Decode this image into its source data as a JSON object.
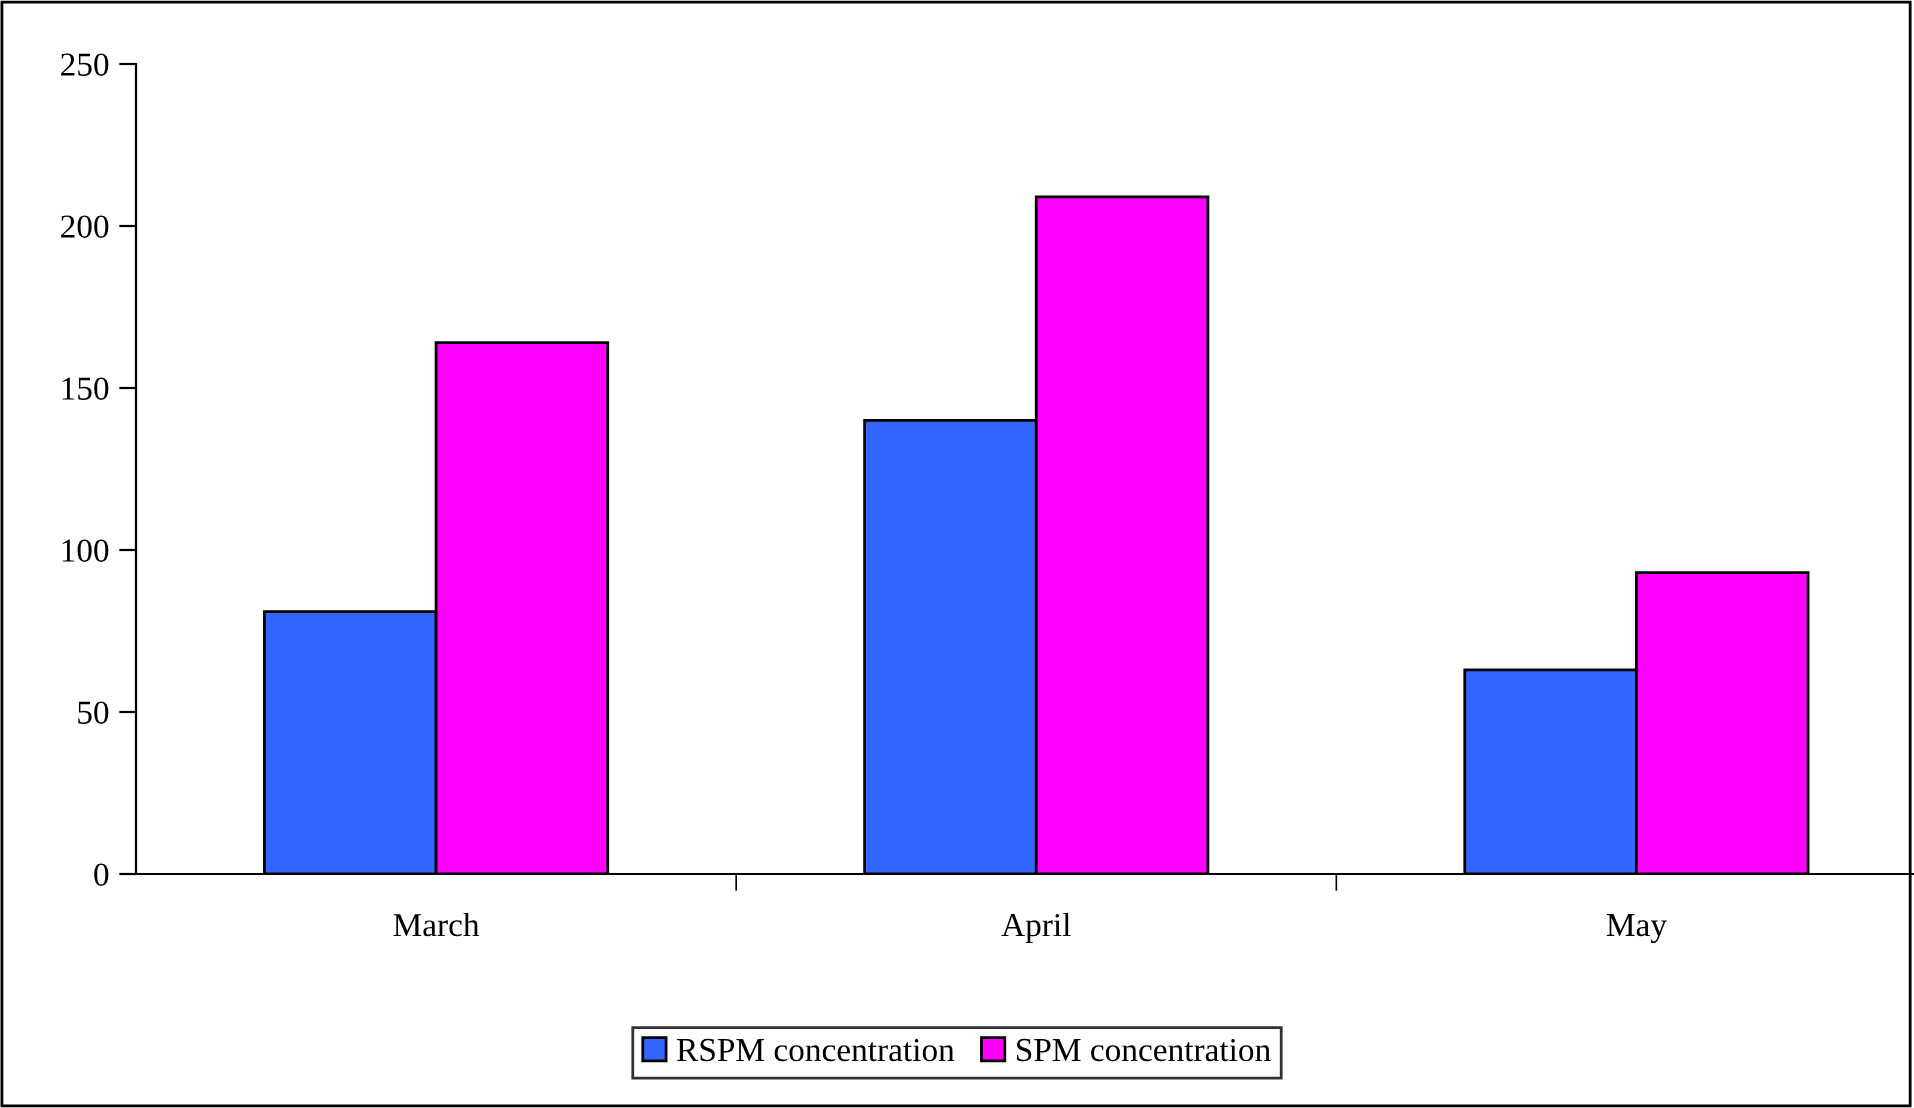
{
  "chart_data": {
    "type": "bar",
    "categories": [
      "March",
      "April",
      "May"
    ],
    "series": [
      {
        "name": "RSPM concentration",
        "color": "#3366ff",
        "values": [
          81,
          140,
          63
        ]
      },
      {
        "name": "SPM concentration",
        "color": "#ff00ff",
        "values": [
          164,
          209,
          93
        ]
      }
    ],
    "ylim": [
      0,
      250
    ],
    "yticks": [
      0,
      50,
      100,
      150,
      200,
      250
    ],
    "grid": false,
    "legend": "bottom"
  }
}
